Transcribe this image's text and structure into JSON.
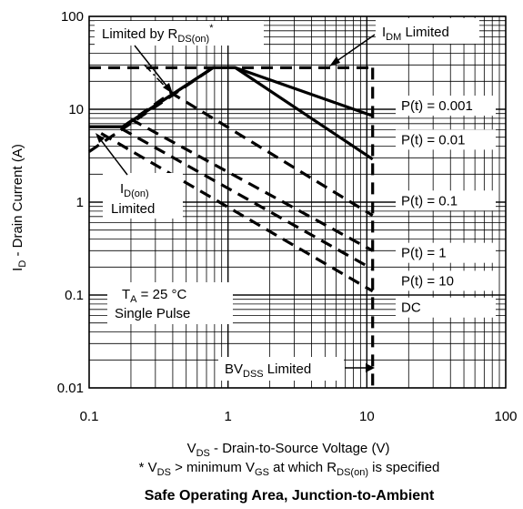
{
  "chart_data": {
    "type": "line",
    "title": "Safe Operating Area, Junction-to-Ambient",
    "footnote": {
      "v1": "* V",
      "v1_sub": "DS",
      "v2": " > minimum V",
      "v2_sub": "GS",
      "v3": " at which R",
      "v3_sub": "DS(on)",
      "v4": " is specified"
    },
    "xlabel": {
      "main": "V",
      "sub": "DS",
      "rest": " - Drain-to-Source Voltage (V)"
    },
    "ylabel": {
      "main": "I",
      "sub": "D",
      "rest": " - Drain Current (A)"
    },
    "x_scale": "log",
    "y_scale": "log",
    "xlim": [
      0.1,
      100
    ],
    "ylim": [
      0.01,
      100
    ],
    "grid": true,
    "x_ticks": [
      {
        "value": 0.1,
        "label": "0.1"
      },
      {
        "value": 1,
        "label": "1"
      },
      {
        "value": 10,
        "label": "10"
      },
      {
        "value": 100,
        "label": "100"
      }
    ],
    "y_ticks": [
      {
        "value": 0.01,
        "label": "0.01"
      },
      {
        "value": 0.1,
        "label": "0.1"
      },
      {
        "value": 1,
        "label": "1"
      },
      {
        "value": 10,
        "label": "10"
      },
      {
        "value": 100,
        "label": "100"
      }
    ],
    "series": [
      {
        "name": "P(t) = 0.001",
        "style": "solid",
        "points": [
          [
            0.1,
            6.5
          ],
          [
            0.175,
            6.5
          ],
          [
            0.78,
            28
          ],
          [
            1.13,
            28
          ],
          [
            11,
            8.5
          ]
        ]
      },
      {
        "name": "P(t) = 0.01",
        "style": "solid",
        "points": [
          [
            0.1,
            6.5
          ],
          [
            0.175,
            6.5
          ],
          [
            0.78,
            28
          ],
          [
            1.13,
            28
          ],
          [
            11,
            2.9
          ]
        ]
      },
      {
        "name": "P(t) = 0.1",
        "style": "dash",
        "points": [
          [
            0.175,
            6.5
          ],
          [
            0.39,
            15
          ],
          [
            11,
            0.72
          ]
        ]
      },
      {
        "name": "P(t) = 1",
        "style": "dash",
        "points": [
          [
            0.2,
            7.8
          ],
          [
            11,
            0.3
          ]
        ]
      },
      {
        "name": "P(t) = 10",
        "style": "dash",
        "points": [
          [
            0.17,
            6.2
          ],
          [
            11,
            0.19
          ]
        ]
      },
      {
        "name": "DC",
        "style": "dash",
        "points": [
          [
            0.122,
            5.5
          ],
          [
            11,
            0.11
          ]
        ]
      }
    ],
    "limit_lines": [
      {
        "name": "I_DM",
        "style": "dash",
        "points": [
          [
            0.1,
            28
          ],
          [
            11,
            28
          ]
        ]
      },
      {
        "name": "BV_DSS",
        "style": "dash",
        "points": [
          [
            11,
            28
          ],
          [
            11,
            0.01
          ]
        ]
      },
      {
        "name": "R_DS(on)",
        "style": "dash",
        "points": [
          [
            0.1,
            3.5
          ],
          [
            0.78,
            28
          ]
        ]
      },
      {
        "name": "R_DS(on)_pointer",
        "style": "dashdot",
        "points": [
          [
            0.25,
            30
          ],
          [
            0.39,
            15
          ]
        ]
      }
    ],
    "annotations": {
      "rds_limit": {
        "text": "Limited by R",
        "sub": "DS(on)",
        "sup": "*"
      },
      "idm_limit": {
        "text1": "I",
        "sub": "DM",
        "text2": " Limited"
      },
      "idon_limit": {
        "text1": "I",
        "sub": "D(on)",
        "text2": "Limited"
      },
      "bvdss_limit": {
        "text1": "BV",
        "sub": "DSS",
        "text2": " Limited"
      },
      "conditions": {
        "t_main": "T",
        "t_sub": "A",
        "t_rest": " = 25 °C",
        "line2": "Single Pulse"
      }
    }
  }
}
